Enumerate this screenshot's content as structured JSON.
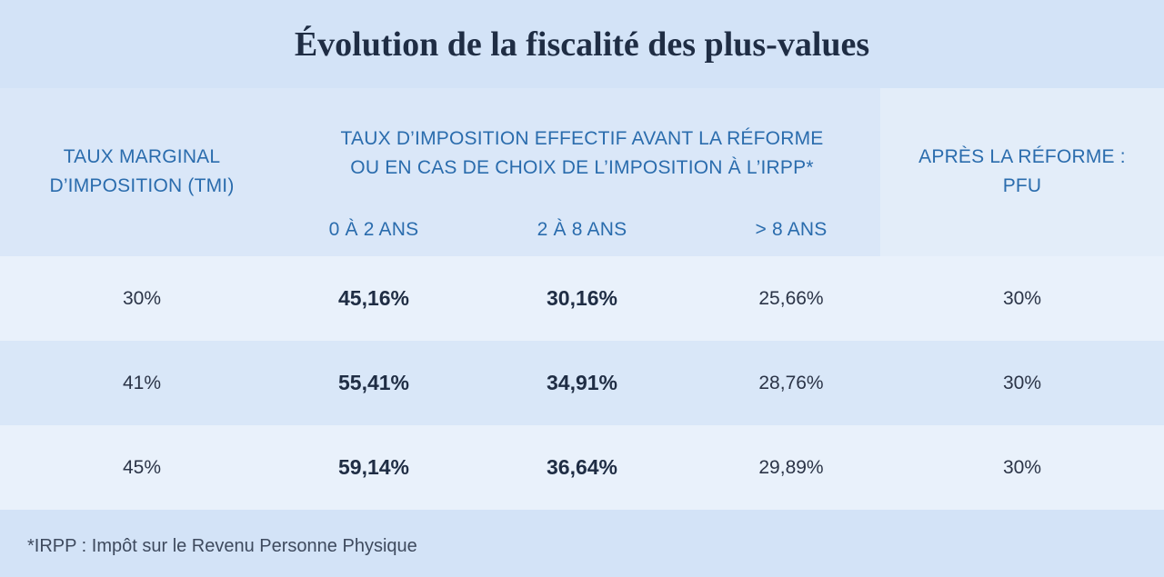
{
  "title": "Évolution de la fiscalité des plus-values",
  "header": {
    "tmi_line1": "TAUX MARGINAL",
    "tmi_line2": "D’IMPOSITION (TMI)",
    "effective_line1": "TAUX D’IMPOSITION EFFECTIF AVANT LA RÉFORME",
    "effective_line2": "OU EN CAS DE CHOIX DE L’IMPOSITION À L’IRPP*",
    "sub_0_2": "0 À 2 ANS",
    "sub_2_8": "2 À 8 ANS",
    "sub_8": "> 8 ANS",
    "pfu_line1": "APRÈS LA RÉFORME :",
    "pfu_line2": "PFU"
  },
  "rows": [
    {
      "tmi": "30%",
      "a": "45,16%",
      "b": "30,16%",
      "c": "25,66%",
      "pfu": "30%"
    },
    {
      "tmi": "41%",
      "a": "55,41%",
      "b": "34,91%",
      "c": "28,76%",
      "pfu": "30%"
    },
    {
      "tmi": "45%",
      "a": "59,14%",
      "b": "36,64%",
      "c": "29,89%",
      "pfu": "30%"
    }
  ],
  "footnote": "*IRPP : Impôt sur le Revenu Personne Physique",
  "colors": {
    "background": "#d3e3f7",
    "header_text": "#2a6cad",
    "title_text": "#1f2d44"
  }
}
